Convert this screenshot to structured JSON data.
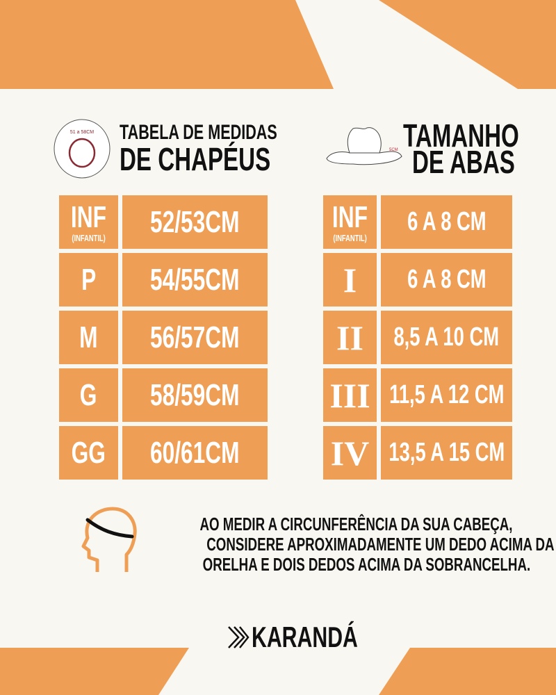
{
  "colors": {
    "accent": "#ef9f55",
    "background": "#f9f7f2",
    "text": "#111111"
  },
  "left_header": {
    "line1": "TABELA DE MEDIDAS",
    "line2": "DE CHAPÉUS",
    "icon": "hat-ring-icon",
    "icon_label": "51 a 58CM"
  },
  "right_header": {
    "line1": "TAMANHO",
    "line2": "DE ABAS",
    "icon": "hat-icon",
    "icon_label": "5CM"
  },
  "hat_sizes": [
    {
      "size": "INF",
      "sub": "(INFANTIL)",
      "value": "52/53CM"
    },
    {
      "size": "P",
      "value": "54/55CM"
    },
    {
      "size": "M",
      "value": "56/57CM"
    },
    {
      "size": "G",
      "value": "58/59CM"
    },
    {
      "size": "GG",
      "value": "60/61CM"
    }
  ],
  "brim_sizes": [
    {
      "size": "INF",
      "sub": "(INFANTIL)",
      "value": "6 A 8 CM"
    },
    {
      "size": "I",
      "value": "6 A 8 CM"
    },
    {
      "size": "II",
      "value": "8,5 A 10 CM"
    },
    {
      "size": "III",
      "value": "11,5 A 12 CM"
    },
    {
      "size": "IV",
      "value": "13,5 A 15 CM"
    }
  ],
  "note": {
    "icon": "head-measure-icon",
    "lines": [
      "AO MEDIR A CIRCUNFERÊNCIA DA SUA CABEÇA,",
      "CONSIDERE APROXIMADAMENTE UM DEDO ACIMA DA",
      "ORELHA E DOIS DEDOS ACIMA DA SOBRANCELHA."
    ]
  },
  "brand": {
    "name": "KARANDÁ",
    "icon": "karanda-logo-icon"
  }
}
